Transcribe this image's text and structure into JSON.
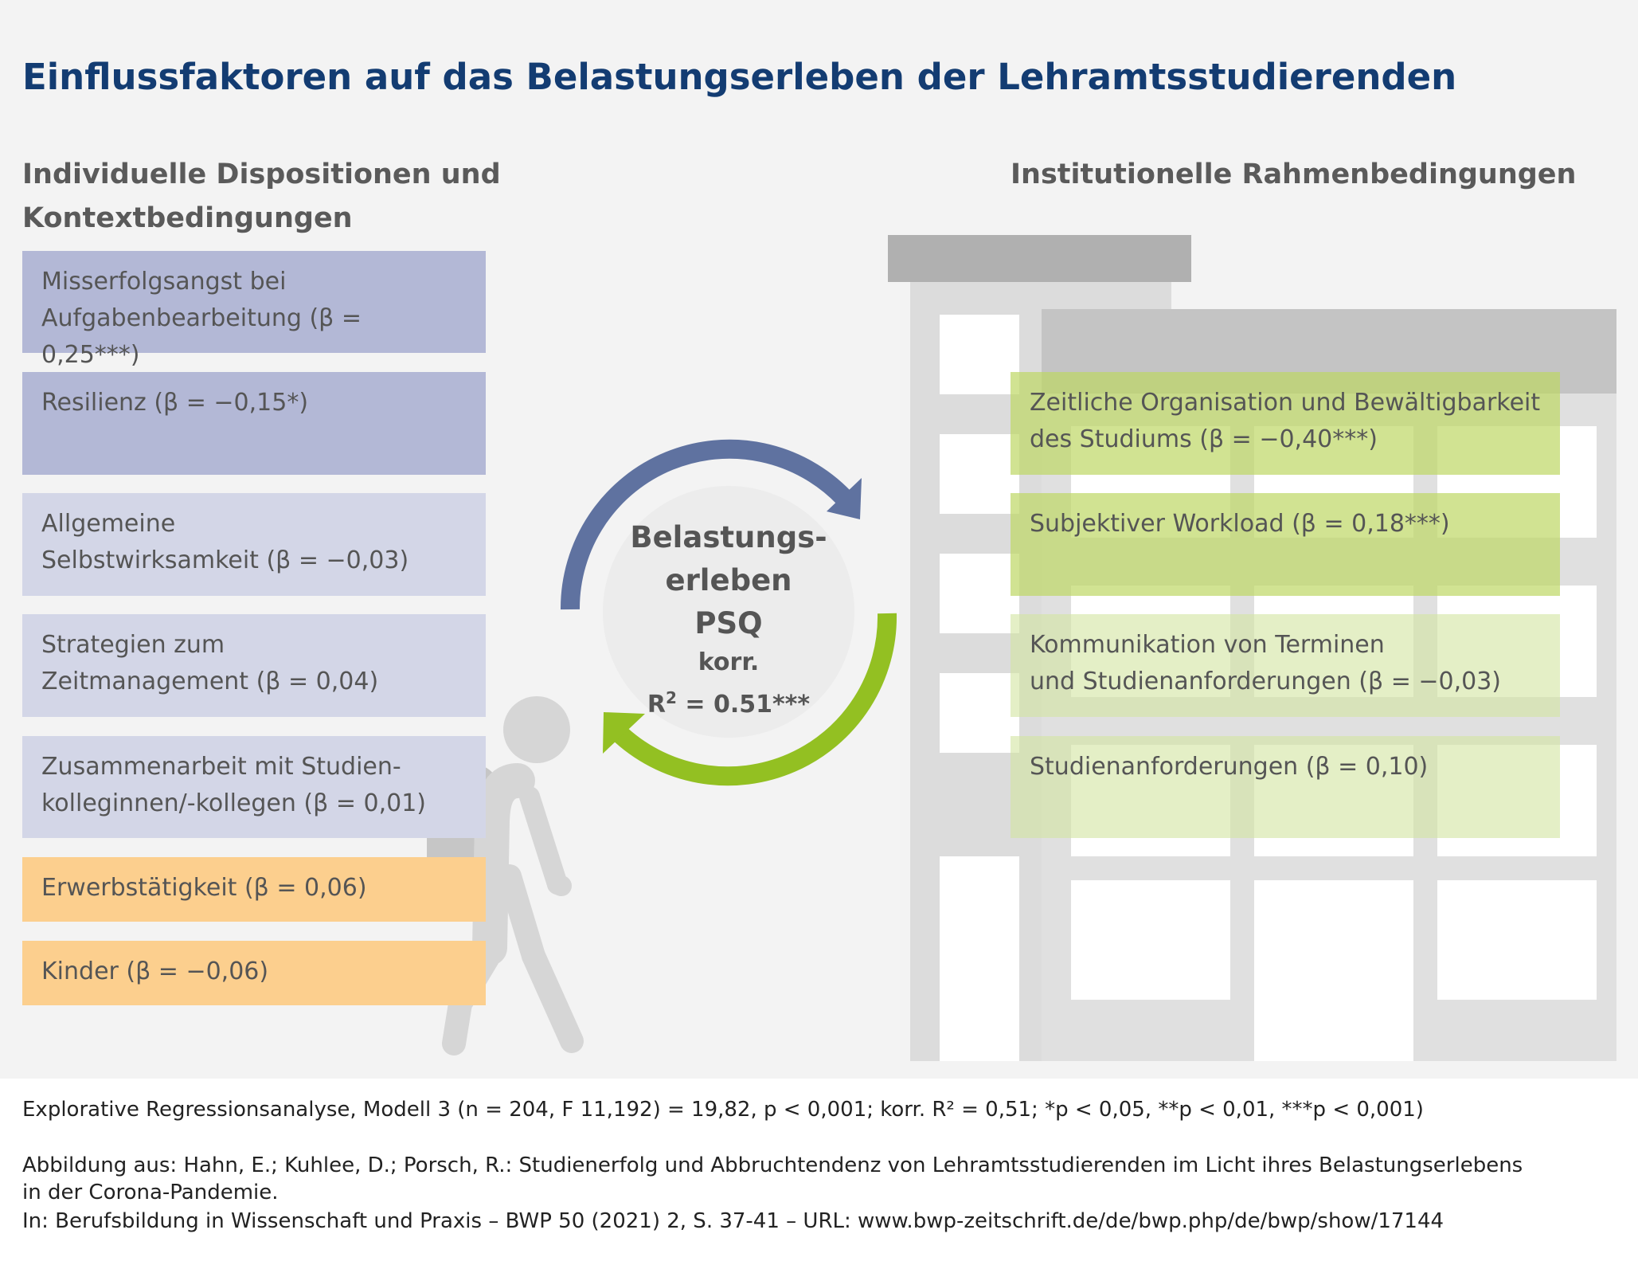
{
  "title": "Einflussfaktoren auf das Belastungserleben der Lehramtsstudierenden",
  "left_heading": [
    "Individuelle Dispositionen und",
    "Kontextbedingungen"
  ],
  "right_heading": "Institutionelle Rahmenbedingungen",
  "left_factors": [
    {
      "lines": [
        "Misserfolgsangst bei",
        "Aufgabenbearbeitung (β = 0,25***)"
      ]
    },
    {
      "lines": [
        "Resilienz (β = −0,15*)"
      ]
    },
    {
      "lines": [
        "Allgemeine",
        "Selbstwirksamkeit (β = −0,03)"
      ]
    },
    {
      "lines": [
        "Strategien zum",
        "Zeitmanagement (β = 0,04)"
      ]
    },
    {
      "lines": [
        "Zusammenarbeit mit Studien-",
        "kolleginnen/-kollegen (β = 0,01)"
      ]
    },
    {
      "lines": [
        "Erwerbstätigkeit (β = 0,06)"
      ]
    },
    {
      "lines": [
        "Kinder (β = −0,06)"
      ]
    }
  ],
  "right_factors": [
    {
      "lines": [
        "Zeitliche Organisation und Bewältigbarkeit",
        "des Studiums (β = −0,40***)"
      ]
    },
    {
      "lines": [
        "Subjektiver Workload (β = 0,18***)"
      ]
    },
    {
      "lines": [
        "Kommunikation von Terminen",
        "und Studienanforderungen (β = −0,03)"
      ]
    },
    {
      "lines": [
        "Studienanforderungen (β = 0,10)"
      ]
    }
  ],
  "center": {
    "line1": "Belastungs-",
    "line2": "erleben",
    "line3": "PSQ",
    "line4": "korr.",
    "r2_label": "R",
    "r2_sup": "2",
    "r2_value": " = 0.51***"
  },
  "colors": {
    "title": "#133c72",
    "arc_blue": "#5f72a0",
    "arc_green": "#93c022"
  },
  "footer": {
    "note": "Explorative Regressionsanalyse, Modell 3 (n = 204, F 11,192) = 19,82, p < 0,001; korr. R² = 0,51; *p < 0,05, **p < 0,01, ***p < 0,001)",
    "source1": "Abbildung aus: Hahn, E.; Kuhlee, D.; Porsch, R.: Studienerfolg und Abbruchtendenz von Lehramtsstudierenden im Licht ihres Belastungserlebens",
    "source2": "in der Corona-Pandemie.",
    "source3": "In: Berufsbildung in Wissenschaft und Praxis – BWP 50 (2021) 2, S. 37-41 – URL: www.bwp-zeitschrift.de/de/bwp.php/de/bwp/show/17144"
  }
}
